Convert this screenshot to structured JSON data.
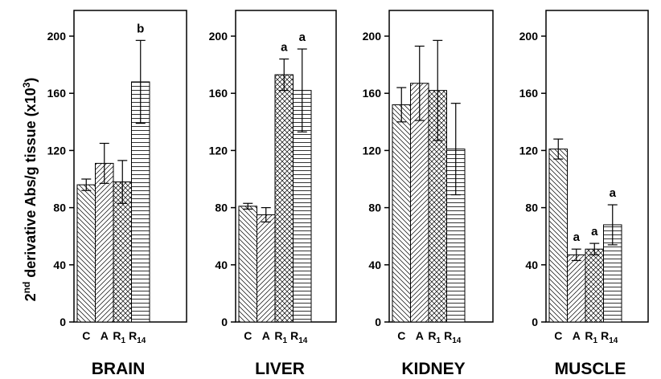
{
  "chart_data": {
    "type": "bar",
    "ylabel": "2",
    "ylabel_sup1": "nd",
    "ylabel_mid": " derivative Abs/g tissue (x10",
    "ylabel_sup2": "3",
    "ylabel_end": ")",
    "ylim": [
      0,
      220
    ],
    "yticks": [
      "0",
      "40",
      "80",
      "120",
      "160",
      "200"
    ],
    "categories": [
      {
        "main": "C",
        "sub": ""
      },
      {
        "main": "A",
        "sub": ""
      },
      {
        "main": "R",
        "sub": "1"
      },
      {
        "main": "R",
        "sub": "14"
      }
    ],
    "patterns": [
      "diag-down",
      "diag-up",
      "crosshatch",
      "horizontal"
    ],
    "panels": [
      {
        "title": "BRAIN",
        "values": [
          96,
          111,
          98,
          168
        ],
        "errors": [
          4,
          14,
          15,
          29
        ],
        "labels": [
          "",
          "",
          "",
          "b"
        ]
      },
      {
        "title": "LIVER",
        "values": [
          81,
          75,
          173,
          162
        ],
        "errors": [
          2,
          5,
          11,
          29
        ],
        "labels": [
          "",
          "",
          "a",
          "a"
        ]
      },
      {
        "title": "KIDNEY",
        "values": [
          152,
          167,
          162,
          121
        ],
        "errors": [
          12,
          26,
          35,
          32
        ],
        "labels": [
          "",
          "",
          "",
          ""
        ]
      },
      {
        "title": "MUSCLE",
        "values": [
          121,
          47,
          51,
          68
        ],
        "errors": [
          7,
          4,
          4,
          14
        ],
        "labels": [
          "",
          "a",
          "a",
          "a"
        ]
      }
    ]
  }
}
